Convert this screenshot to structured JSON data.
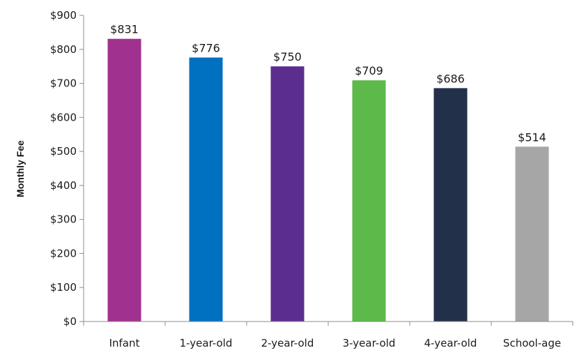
{
  "chart_data": {
    "type": "bar",
    "title": "",
    "xlabel": "",
    "ylabel": "Monthly Fee",
    "categories": [
      "Infant",
      "1-year-old",
      "2-year-old",
      "3-year-old",
      "4-year-old",
      "School-age"
    ],
    "values": [
      831,
      776,
      750,
      709,
      686,
      514
    ],
    "value_labels": [
      "$831",
      "$776",
      "$750",
      "$709",
      "$686",
      "$514"
    ],
    "colors": [
      "#A0318F",
      "#0070C0",
      "#5B2D8E",
      "#5DB94A",
      "#23304A",
      "#A6A6A6"
    ],
    "ylim": [
      0,
      900
    ],
    "yticks": [
      0,
      100,
      200,
      300,
      400,
      500,
      600,
      700,
      800,
      900
    ],
    "ytick_labels": [
      "$0",
      "$100",
      "$200",
      "$300",
      "$400",
      "$500",
      "$600",
      "$700",
      "$800",
      "$900"
    ],
    "grid": false,
    "legend": "none"
  }
}
